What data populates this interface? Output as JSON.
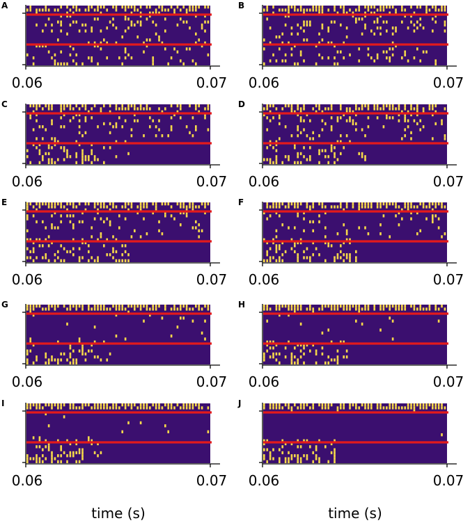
{
  "chart_data": {
    "type": "heatmap",
    "description_kind": "spike raster (binary)",
    "x_range": [
      0.06,
      0.07
    ],
    "x_tick_labels": [
      "0.06",
      "0.07"
    ],
    "xlabel": "time (s)",
    "colors": {
      "background": "#3b0f6f",
      "spike": "#f5d84a",
      "threshold_line": "#e31a1c"
    },
    "panels": [
      {
        "letter": "A",
        "top_density": 0.55,
        "middle_density": 0.22,
        "bottom_density": 0.18,
        "tail": 1.0
      },
      {
        "letter": "B",
        "top_density": 0.55,
        "middle_density": 0.22,
        "bottom_density": 0.18,
        "tail": 1.0
      },
      {
        "letter": "C",
        "top_density": 0.55,
        "middle_density": 0.2,
        "bottom_density": 0.3,
        "tail": 0.55
      },
      {
        "letter": "D",
        "top_density": 0.55,
        "middle_density": 0.2,
        "bottom_density": 0.3,
        "tail": 0.55
      },
      {
        "letter": "E",
        "top_density": 0.65,
        "middle_density": 0.18,
        "bottom_density": 0.35,
        "tail": 0.55
      },
      {
        "letter": "F",
        "top_density": 0.65,
        "middle_density": 0.14,
        "bottom_density": 0.35,
        "tail": 0.5
      },
      {
        "letter": "G",
        "top_density": 0.7,
        "middle_density": 0.05,
        "bottom_density": 0.35,
        "tail": 0.45
      },
      {
        "letter": "H",
        "top_density": 0.7,
        "middle_density": 0.03,
        "bottom_density": 0.35,
        "tail": 0.45
      },
      {
        "letter": "I",
        "top_density": 0.75,
        "middle_density": 0.02,
        "bottom_density": 0.35,
        "tail": 0.4
      },
      {
        "letter": "J",
        "top_density": 0.75,
        "middle_density": 0.005,
        "bottom_density": 0.35,
        "tail": 0.4
      }
    ]
  }
}
